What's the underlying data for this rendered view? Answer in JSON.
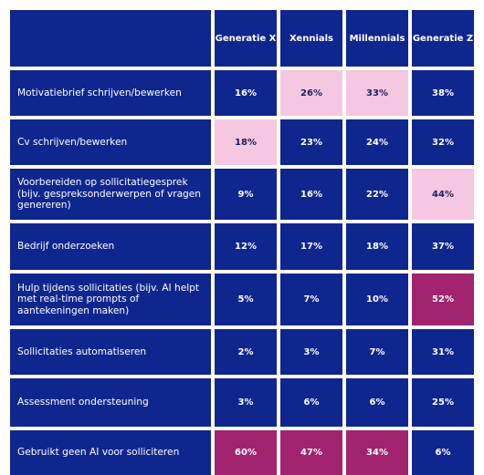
{
  "chart_data": {
    "type": "table",
    "columns": [
      "Generatie X",
      "Xennials",
      "Millennials",
      "Generatie Z"
    ],
    "rows": [
      {
        "label": "Motivatiebrief schrijven/bewerken",
        "values": [
          "16%",
          "26%",
          "33%",
          "38%"
        ],
        "highlight": [
          "",
          "light",
          "light",
          ""
        ]
      },
      {
        "label": "Cv schrijven/bewerken",
        "values": [
          "18%",
          "23%",
          "24%",
          "32%"
        ],
        "highlight": [
          "light",
          "",
          "",
          ""
        ]
      },
      {
        "label": "Voorbereiden op sollicitatiegesprek (bijv. gespreksonderwerpen of vragen genereren)",
        "values": [
          "9%",
          "16%",
          "22%",
          "44%"
        ],
        "highlight": [
          "",
          "",
          "",
          "light"
        ]
      },
      {
        "label": "Bedrijf onderzoeken",
        "values": [
          "12%",
          "17%",
          "18%",
          "37%"
        ],
        "highlight": [
          "",
          "",
          "",
          ""
        ]
      },
      {
        "label": "Hulp tijdens sollicitaties (bijv. AI helpt met real-time prompts of aantekeningen maken)",
        "values": [
          "5%",
          "7%",
          "10%",
          "52%"
        ],
        "highlight": [
          "",
          "",
          "",
          "dark"
        ]
      },
      {
        "label": "Sollicitaties automatiseren",
        "values": [
          "2%",
          "3%",
          "7%",
          "31%"
        ],
        "highlight": [
          "",
          "",
          "",
          ""
        ]
      },
      {
        "label": "Assessment ondersteuning",
        "values": [
          "3%",
          "6%",
          "6%",
          "25%"
        ],
        "highlight": [
          "",
          "",
          "",
          ""
        ]
      },
      {
        "label": "Gebruikt geen AI voor solliciteren",
        "values": [
          "60%",
          "47%",
          "34%",
          "6%"
        ],
        "highlight": [
          "dark",
          "dark",
          "dark",
          ""
        ]
      }
    ],
    "colors": {
      "cell": "#10268f",
      "highlight_light": "#f6c7e0",
      "highlight_dark": "#a1236f",
      "text_light": "#ffffff",
      "text_dark": "#1b1f5e"
    }
  }
}
